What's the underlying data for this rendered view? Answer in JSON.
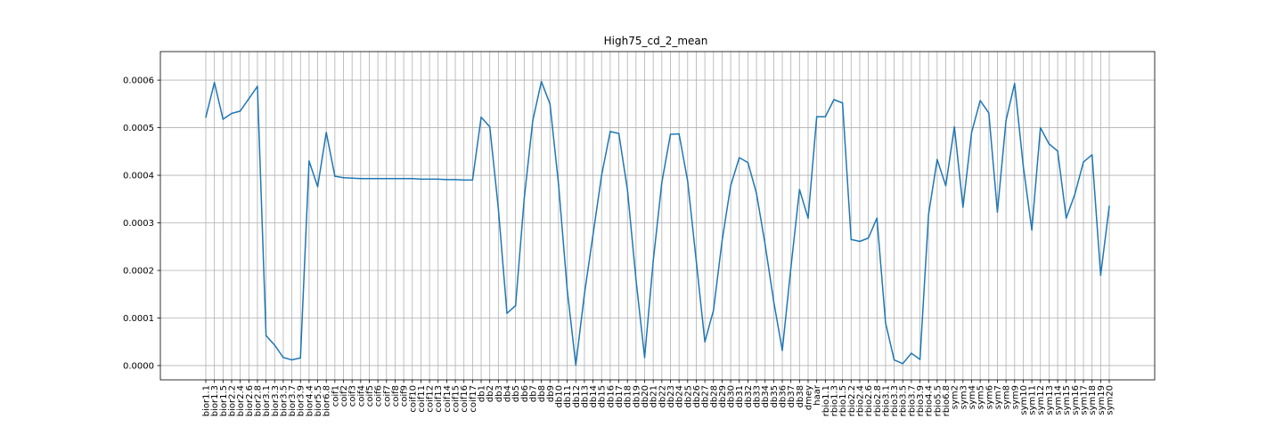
{
  "chart_data": {
    "type": "line",
    "title": "High75_cd_2_mean",
    "xlabel": "",
    "ylabel": "",
    "ylim": [
      -3e-05,
      0.00066
    ],
    "yticks": [
      0.0,
      0.0001,
      0.0002,
      0.0003,
      0.0004,
      0.0005,
      0.0006
    ],
    "ytick_labels": [
      "0.0000",
      "0.0001",
      "0.0002",
      "0.0003",
      "0.0004",
      "0.0005",
      "0.0006"
    ],
    "grid": true,
    "line_color": "#1f77b4",
    "categories": [
      "bior1.1",
      "bior1.3",
      "bior1.5",
      "bior2.2",
      "bior2.4",
      "bior2.6",
      "bior2.8",
      "bior3.1",
      "bior3.3",
      "bior3.5",
      "bior3.7",
      "bior3.9",
      "bior4.4",
      "bior5.5",
      "bior6.8",
      "coif1",
      "coif2",
      "coif3",
      "coif4",
      "coif5",
      "coif6",
      "coif7",
      "coif8",
      "coif9",
      "coif10",
      "coif11",
      "coif12",
      "coif13",
      "coif14",
      "coif15",
      "coif16",
      "coif17",
      "db1",
      "db2",
      "db3",
      "db4",
      "db5",
      "db6",
      "db7",
      "db8",
      "db9",
      "db10",
      "db11",
      "db12",
      "db13",
      "db14",
      "db15",
      "db16",
      "db17",
      "db18",
      "db19",
      "db20",
      "db21",
      "db22",
      "db23",
      "db24",
      "db25",
      "db26",
      "db27",
      "db28",
      "db29",
      "db30",
      "db31",
      "db32",
      "db33",
      "db34",
      "db35",
      "db36",
      "db37",
      "db38",
      "dmey",
      "haar",
      "rbio1.1",
      "rbio1.3",
      "rbio1.5",
      "rbio2.2",
      "rbio2.4",
      "rbio2.6",
      "rbio2.8",
      "rbio3.1",
      "rbio3.3",
      "rbio3.5",
      "rbio3.7",
      "rbio3.9",
      "rbio4.4",
      "rbio5.5",
      "rbio6.8",
      "sym2",
      "sym3",
      "sym4",
      "sym5",
      "sym6",
      "sym7",
      "sym8",
      "sym9",
      "sym10",
      "sym11",
      "sym12",
      "sym13",
      "sym14",
      "sym15",
      "sym16",
      "sym17",
      "sym18",
      "sym19",
      "sym20"
    ],
    "values": [
      0.000522,
      0.000595,
      0.000518,
      0.00053,
      0.000535,
      0.000561,
      0.000587,
      6.3e-05,
      4.3e-05,
      1.7e-05,
      1.2e-05,
      1.6e-05,
      0.00043,
      0.000376,
      0.00049,
      0.000398,
      0.000395,
      0.000394,
      0.000393,
      0.000393,
      0.000393,
      0.000393,
      0.000393,
      0.000393,
      0.000393,
      0.000392,
      0.000392,
      0.000392,
      0.000391,
      0.000391,
      0.00039,
      0.00039,
      0.000522,
      0.000502,
      0.00033,
      0.00011,
      0.000126,
      0.00035,
      0.000515,
      0.000597,
      0.00055,
      0.00038,
      0.00016,
      1e-06,
      0.00015,
      0.000275,
      0.0004,
      0.000492,
      0.000488,
      0.00037,
      0.00018,
      1.7e-05,
      0.00022,
      0.000385,
      0.000486,
      0.000487,
      0.000388,
      0.00022,
      5e-05,
      0.000116,
      0.000262,
      0.000378,
      0.000437,
      0.000427,
      0.000362,
      0.000255,
      0.000135,
      3.2e-05,
      0.000206,
      0.00037,
      0.00031,
      0.000523,
      0.000523,
      0.000559,
      0.000552,
      0.000265,
      0.000261,
      0.000268,
      0.00031,
      9e-05,
      1.2e-05,
      4e-06,
      2.6e-05,
      1.3e-05,
      0.000318,
      0.000433,
      0.000378,
      0.000502,
      0.000333,
      0.00049,
      0.000557,
      0.000531,
      0.000323,
      0.000515,
      0.000593,
      0.00042,
      0.000285,
      0.0005,
      0.000466,
      0.000451,
      0.00031,
      0.00036,
      0.000428,
      0.000443,
      0.00019,
      0.000335
    ]
  }
}
